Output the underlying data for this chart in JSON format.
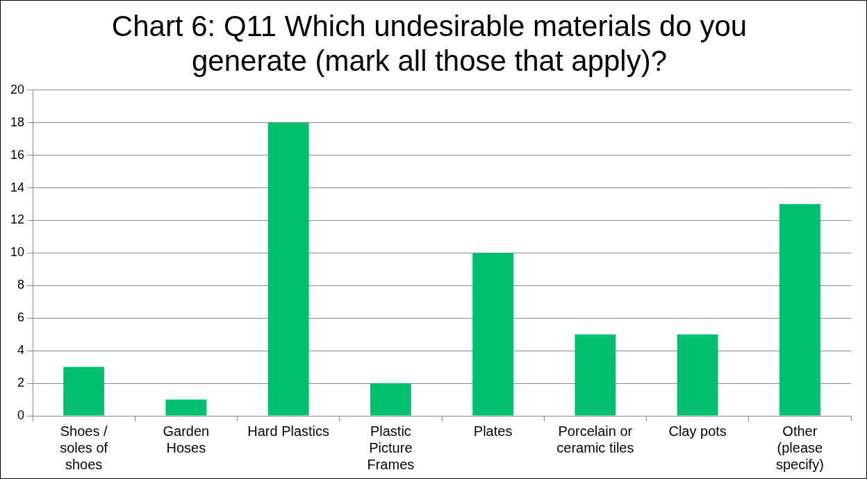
{
  "chart_data": {
    "type": "bar",
    "title": "Chart 6: Q11 Which undesirable materials do you generate (mark all those that apply)?",
    "categories": [
      "Shoes / soles of shoes",
      "Garden Hoses",
      "Hard Plastics",
      "Plastic Picture Frames",
      "Plates",
      "Porcelain or ceramic tiles",
      "Clay pots",
      "Other (please specify)"
    ],
    "values": [
      3,
      1,
      18,
      2,
      10,
      5,
      5,
      13
    ],
    "color": "#00bf6f",
    "ylim": [
      0,
      20
    ],
    "yticks": [
      0,
      2,
      4,
      6,
      8,
      10,
      12,
      14,
      16,
      18,
      20
    ],
    "grid": "y",
    "legend": false
  }
}
